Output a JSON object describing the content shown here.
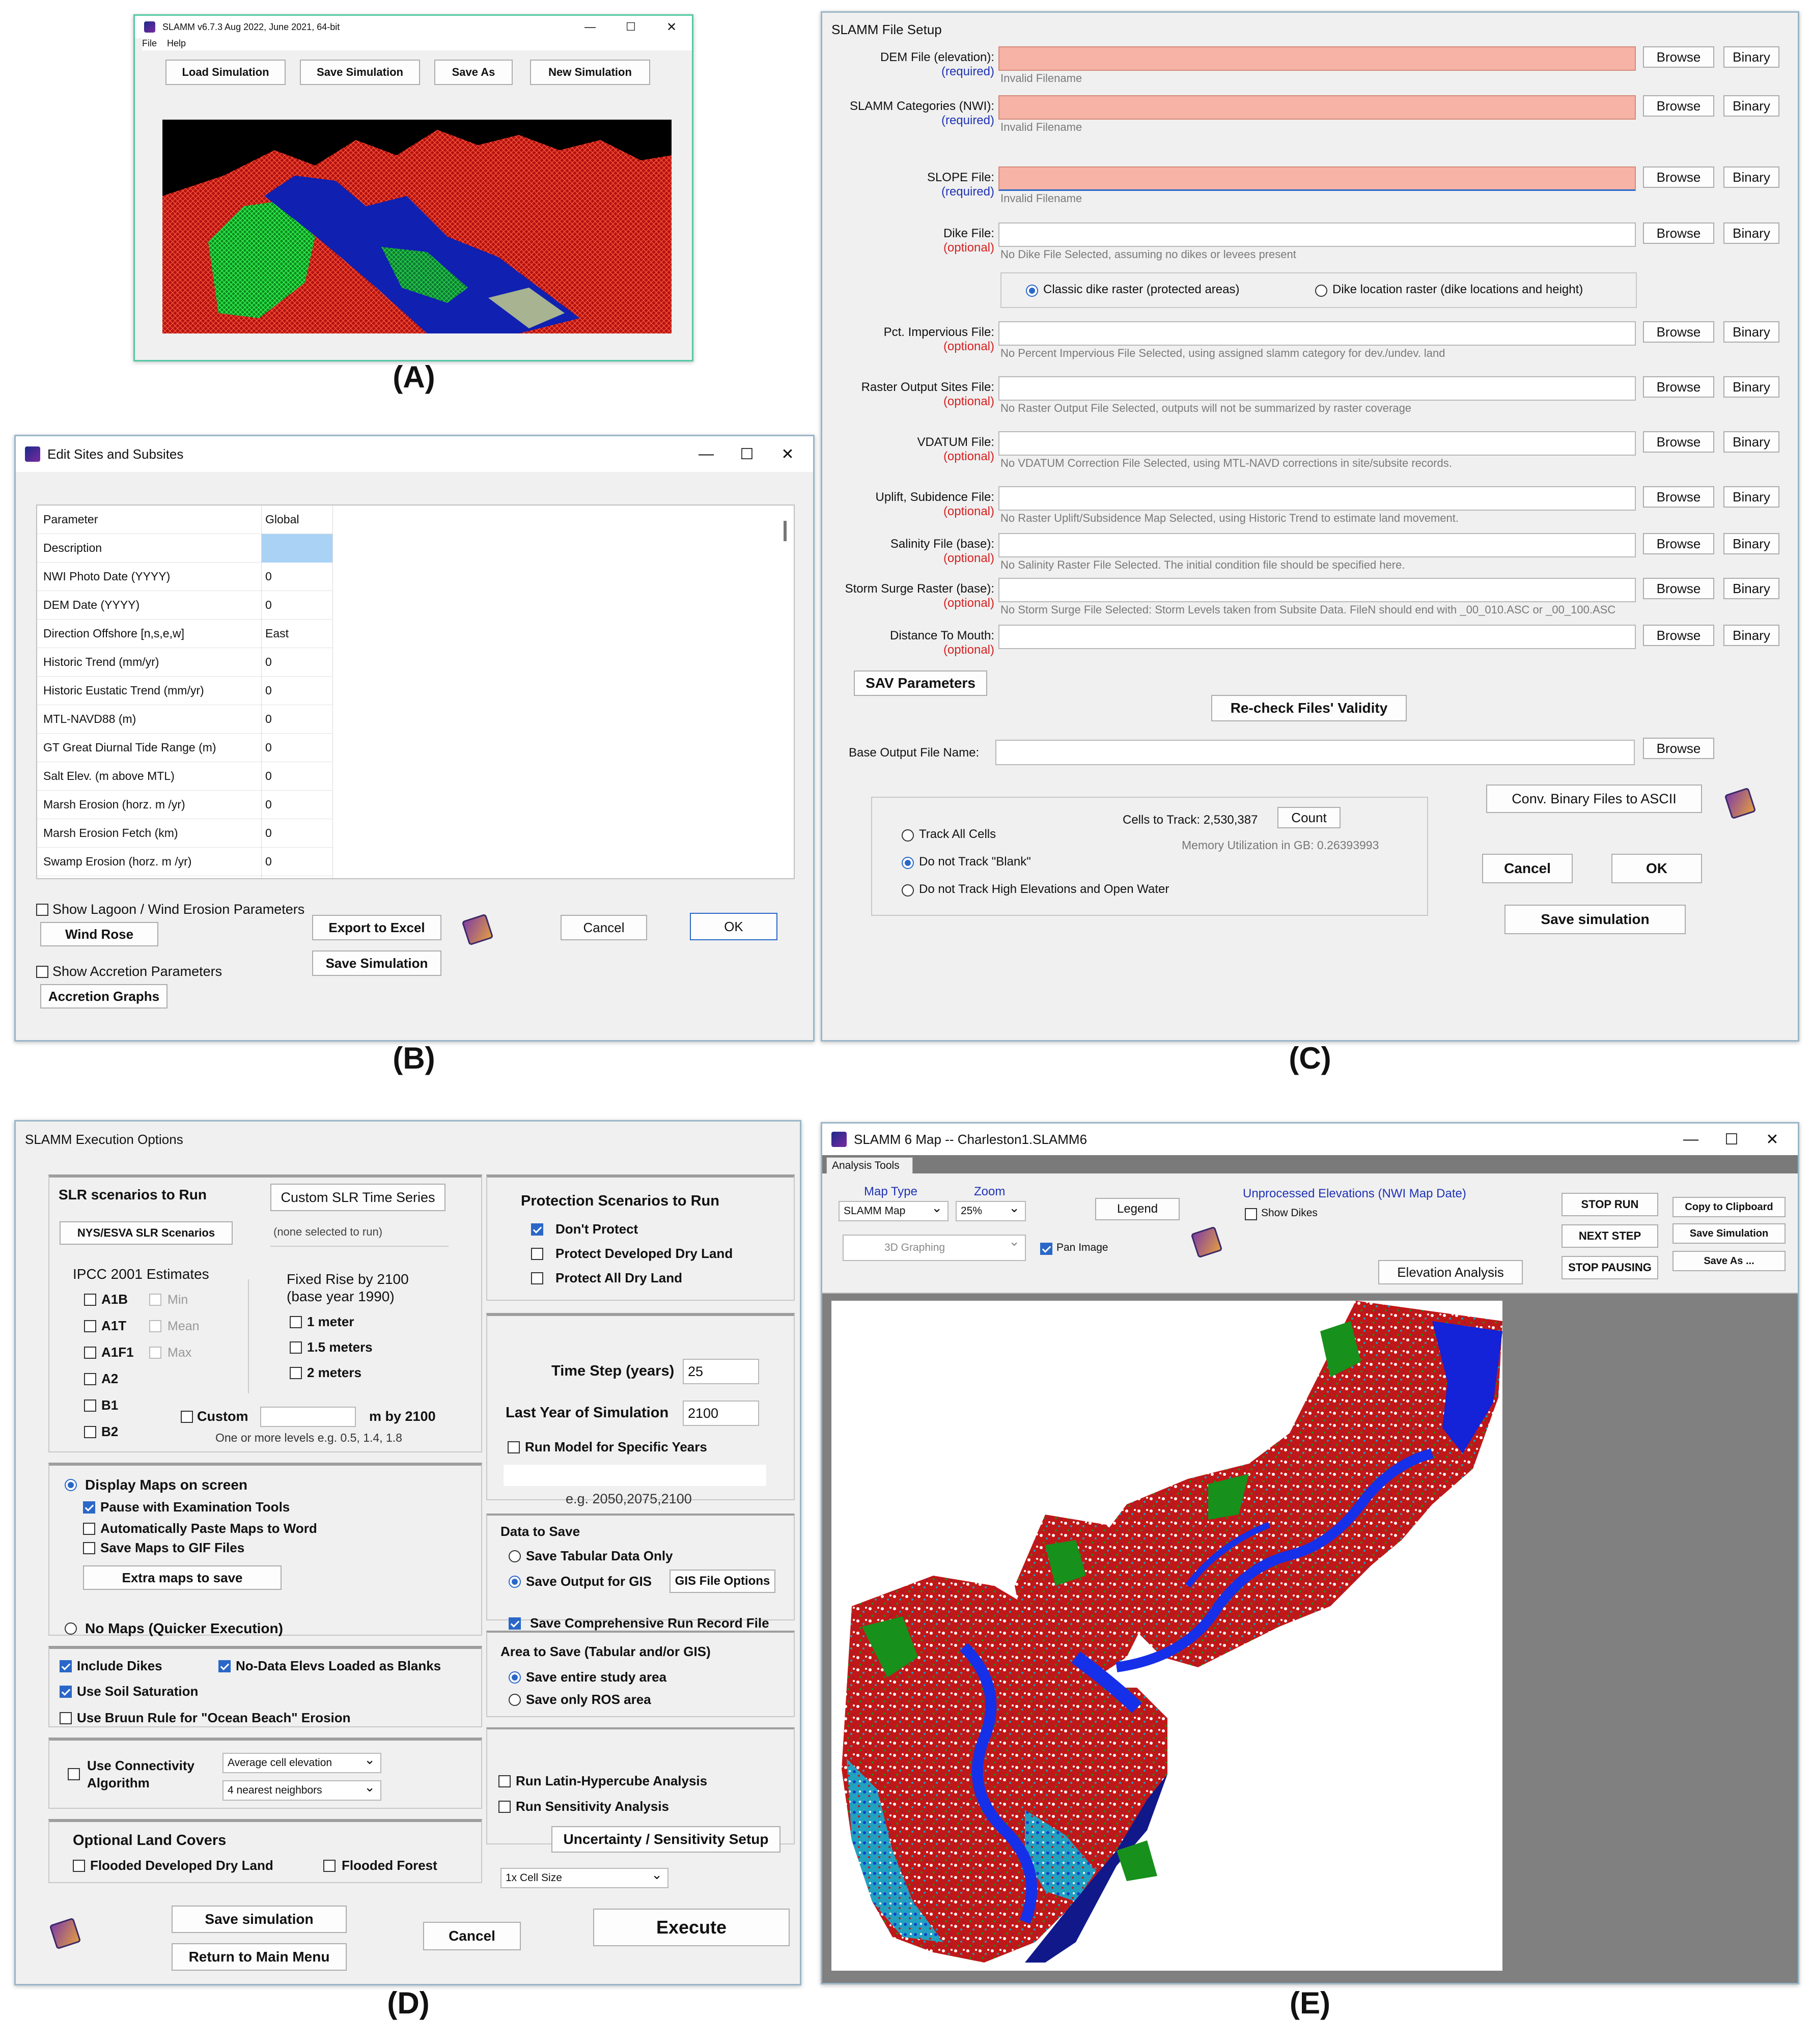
{
  "captions": {
    "a": "(A)",
    "b": "(B)",
    "c": "(C)",
    "d": "(D)",
    "e": "(E)"
  },
  "icons": {
    "book": "help-book-icon",
    "app": "slamm-app-icon"
  },
  "a": {
    "title": "SLAMM v6.7.3 Aug 2022, June 2021, 64-bit",
    "menu": [
      "File",
      "Help"
    ],
    "buttons": [
      "Load Simulation",
      "Save Simulation",
      "Save As",
      "New Simulation"
    ]
  },
  "b": {
    "title": "Edit Sites and Subsites",
    "header": {
      "param": "Parameter",
      "global": "Global"
    },
    "rows": [
      {
        "p": "Description",
        "v": ""
      },
      {
        "p": "NWI Photo Date (YYYY)",
        "v": "0"
      },
      {
        "p": "DEM Date (YYYY)",
        "v": "0"
      },
      {
        "p": "Direction Offshore [n,s,e,w]",
        "v": "East"
      },
      {
        "p": "Historic Trend (mm/yr)",
        "v": "0"
      },
      {
        "p": "Historic Eustatic Trend (mm/yr)",
        "v": "0"
      },
      {
        "p": "MTL-NAVD88 (m)",
        "v": "0"
      },
      {
        "p": "GT Great Diurnal Tide Range (m)",
        "v": "0"
      },
      {
        "p": "Salt Elev. (m above MTL)",
        "v": "0"
      },
      {
        "p": "Marsh Erosion (horz. m /yr)",
        "v": "0"
      },
      {
        "p": "Marsh Erosion Fetch (km)",
        "v": "0"
      },
      {
        "p": "Swamp Erosion (horz. m /yr)",
        "v": "0"
      }
    ],
    "show_lagoon": "Show Lagoon / Wind Erosion Parameters",
    "wind_rose": "Wind Rose",
    "show_accretion": "Show Accretion Parameters",
    "accretion_graphs": "Accretion Graphs",
    "export": "Export to Excel",
    "save": "Save Simulation",
    "cancel": "Cancel",
    "ok": "OK"
  },
  "c": {
    "title": "SLAMM File Setup",
    "required": "(required)",
    "optional": "(optional)",
    "browse": "Browse",
    "binary": "Binary",
    "rows": [
      {
        "label": "DEM File (elevation):",
        "status": "required",
        "hint": "Invalid Filename"
      },
      {
        "label": "SLAMM Categories (NWI):",
        "status": "required",
        "hint": "Invalid Filename"
      },
      {
        "label": "SLOPE File:",
        "status": "required",
        "hint": "Invalid Filename"
      },
      {
        "label": "Dike File:",
        "status": "optional",
        "hint": "No Dike File Selected, assuming no dikes or levees present"
      },
      {
        "label": "Pct. Impervious File:",
        "status": "optional",
        "hint": "No Percent Impervious File Selected, using assigned slamm category for dev./undev. land"
      },
      {
        "label": "Raster Output Sites File:",
        "status": "optional",
        "hint": "No Raster Output File Selected, outputs will not be summarized by raster coverage"
      },
      {
        "label": "VDATUM File:",
        "status": "optional",
        "hint": "No VDATUM Correction File Selected, using MTL-NAVD corrections in site/subsite records."
      },
      {
        "label": "Uplift, Subidence File:",
        "status": "optional",
        "hint": "No Raster Uplift/Subsidence Map Selected, using Historic Trend to estimate land movement."
      },
      {
        "label": "Salinity File (base):",
        "status": "optional",
        "hint": "No Salinity Raster File Selected.  The initial condition file should be specified here."
      },
      {
        "label": "Storm Surge Raster (base):",
        "status": "optional",
        "hint": "No Storm Surge File Selected: Storm Levels taken from Subsite Data.  FileN should end with _00_010.ASC or _00_100.ASC"
      },
      {
        "label": "Distance To Mouth:",
        "status": "optional",
        "hint": ""
      }
    ],
    "dike_classic": "Classic dike raster (protected areas)",
    "dike_location": "Dike location raster (dike locations and height)",
    "sav": "SAV Parameters",
    "recheck": "Re-check Files' Validity",
    "base_output": "Base Output File Name:",
    "cells_to_track": "Cells to Track: 2,530,387",
    "count": "Count",
    "memory": "Memory Utilization in GB: 0.26393993",
    "track_all": "Track All Cells",
    "not_blank": "Do not Track \"Blank\"",
    "not_high": "Do not Track High Elevations and Open Water",
    "conv": "Conv. Binary Files to ASCII",
    "cancel": "Cancel",
    "ok": "OK",
    "save": "Save simulation"
  },
  "d": {
    "title": "SLAMM Execution Options",
    "slr_title": "SLR scenarios to Run",
    "custom_slr": "Custom SLR Time Series",
    "nys": "NYS/ESVA SLR Scenarios",
    "none_selected": "(none selected to run)",
    "ipcc": "IPCC 2001  Estimates",
    "ipcc_items": [
      "A1B",
      "A1T",
      "A1F1",
      "A2",
      "B1",
      "B2"
    ],
    "stats": [
      "Min",
      "Mean",
      "Max"
    ],
    "fixed": "Fixed Rise by 2100",
    "base_year": "(base year 1990)",
    "fixed_items": [
      "1 meter",
      "1.5 meters",
      "2 meters"
    ],
    "custom": "Custom",
    "m_by": "m  by 2100",
    "one_or_more": "One or more levels e.g. 0.5, 1.4, 1.8",
    "display_maps": "Display Maps on screen",
    "pause": "Pause with Examination Tools",
    "paste": "Automatically Paste Maps to Word",
    "gif": "Save Maps to GIF Files",
    "extra": "Extra maps to save",
    "no_maps": "No Maps (Quicker Execution)",
    "include_dikes": "Include Dikes",
    "nodata": "No-Data Elevs Loaded as Blanks",
    "soil": "Use Soil Saturation",
    "bruun": "Use Bruun Rule for \"Ocean Beach\" Erosion",
    "connectivity": "Use Connectivity",
    "algorithm": "Algorithm",
    "avg_cell": "Average cell elevation",
    "nearest": "4 nearest neighbors",
    "optional_covers": "Optional Land Covers",
    "flooded_dev": "Flooded Developed Dry Land",
    "flooded_forest": "Flooded Forest",
    "protection": "Protection Scenarios to Run",
    "dont_protect": "Don't Protect",
    "protect_dev": "Protect Developed Dry Land",
    "protect_all": "Protect All Dry Land",
    "time_step": "Time Step (years)",
    "time_step_val": "25",
    "last_year": "Last Year of Simulation",
    "last_year_val": "2100",
    "specific": "Run Model for Specific Years",
    "eg_years": "e.g. 2050,2075,2100",
    "data_to_save": "Data to Save",
    "tabular": "Save Tabular Data Only",
    "gis": "Save Output for GIS",
    "gis_opts": "GIS File Options",
    "comprehensive": "Save Comprehensive Run Record File",
    "area_save": "Area to Save (Tabular and/or GIS)",
    "entire": "Save entire study area",
    "ros": "Save only ROS area",
    "latin": "Run Latin-Hypercube Analysis",
    "sensitivity": "Run Sensitivity Analysis",
    "uncertainty": "Uncertainty / Sensitivity Setup",
    "cell_size": "1x Cell Size",
    "save": "Save simulation",
    "return": "Return to Main Menu",
    "cancel": "Cancel",
    "execute": "Execute"
  },
  "e": {
    "title": "SLAMM 6 Map -- Charleston1.SLAMM6",
    "tab": "Analysis Tools",
    "map_type": "Map Type",
    "map_type_val": "SLAMM Map",
    "zoom": "Zoom",
    "zoom_val": "25%",
    "legend": "Legend",
    "graphing": "3D Graphing",
    "pan": "Pan Image",
    "unprocessed": "Unprocessed Elevations (NWI Map Date)",
    "show_dikes": "Show Dikes",
    "elev_analysis": "Elevation Analysis",
    "stop_run": "STOP RUN",
    "next_step": "NEXT STEP",
    "stop_pausing": "STOP PAUSING",
    "copy": "Copy to Clipboard",
    "save_sim": "Save Simulation",
    "save_as": "Save As ..."
  }
}
